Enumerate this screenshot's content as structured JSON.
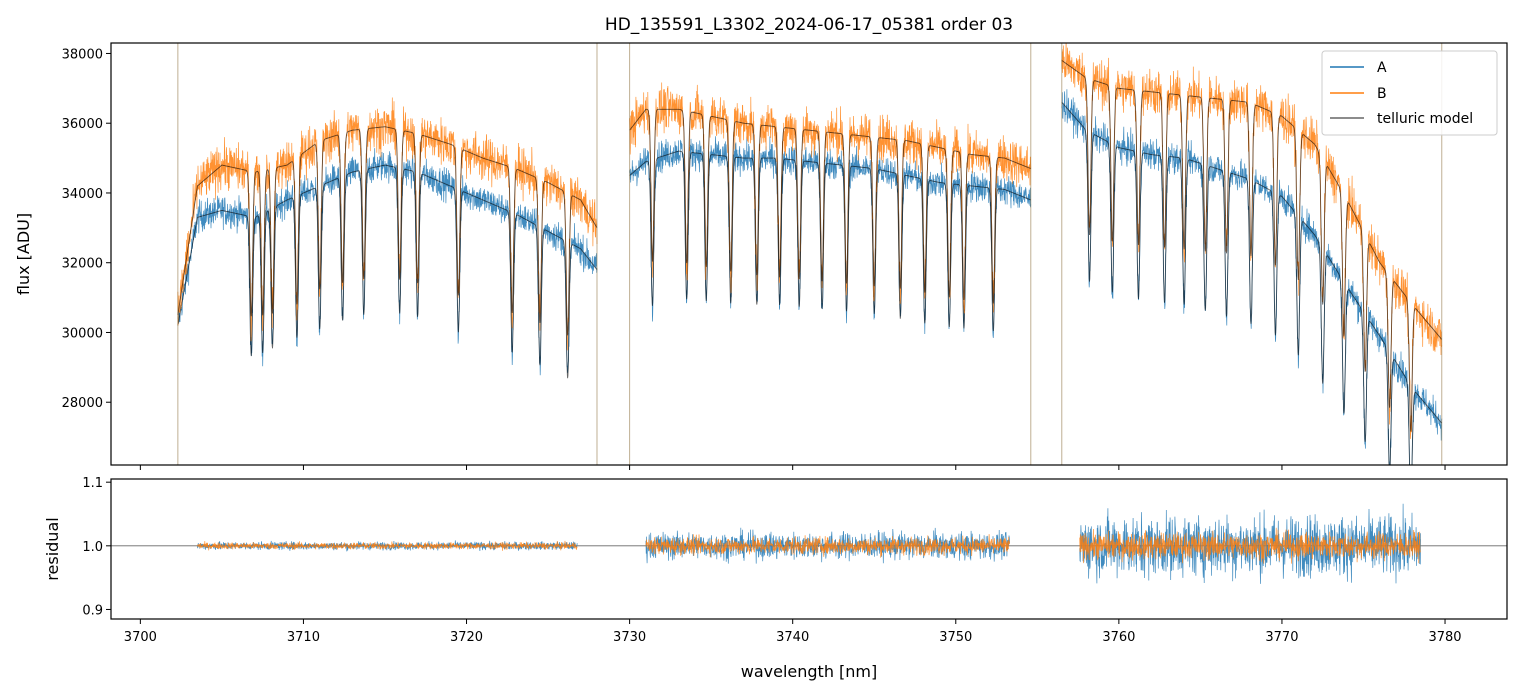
{
  "chart_data": [
    {
      "type": "line",
      "title": "HD_135591_L3302_2024-06-17_05381  order 03",
      "xlabel": "",
      "ylabel": "flux [ADU]",
      "xlim": [
        3698.2,
        3783.8
      ],
      "ylim": [
        26200,
        38300
      ],
      "xticks": [
        3700,
        3710,
        3720,
        3730,
        3740,
        3750,
        3760,
        3770,
        3780
      ],
      "yticks": [
        28000,
        30000,
        32000,
        34000,
        36000,
        38000
      ],
      "ytick_labels": [
        "28000",
        "30000",
        "32000",
        "34000",
        "36000",
        "38000"
      ],
      "legend_position": "top-right",
      "series": [
        {
          "name": "A",
          "color": "#1f77b4",
          "segments": [
            {
              "x": [
                3702.3,
                3703.5,
                3705.0,
                3707.0,
                3709.0,
                3711.0,
                3713.0,
                3715.0,
                3717.0,
                3719.0,
                3721.0,
                3723.0,
                3725.0,
                3727.0,
                3728.0
              ],
              "y": [
                30200,
                33300,
                33500,
                33300,
                33800,
                34200,
                34600,
                34800,
                34600,
                34200,
                33800,
                33400,
                32900,
                32400,
                31800
              ]
            },
            {
              "x": [
                3730.0,
                3731.0,
                3733.0,
                3735.0,
                3737.0,
                3739.0,
                3741.0,
                3743.0,
                3745.0,
                3747.0,
                3749.0,
                3751.0,
                3753.0,
                3754.6
              ],
              "y": [
                34500,
                34900,
                35200,
                35100,
                35000,
                35000,
                34900,
                34800,
                34700,
                34500,
                34300,
                34200,
                34100,
                33800
              ]
            },
            {
              "x": [
                3756.5,
                3758.0,
                3760.0,
                3762.0,
                3764.0,
                3766.0,
                3768.0,
                3770.0,
                3772.0,
                3774.0,
                3776.0,
                3778.0,
                3779.8
              ],
              "y": [
                36600,
                35800,
                35300,
                35100,
                35000,
                34700,
                34400,
                33900,
                32800,
                31300,
                29900,
                28400,
                27400
              ]
            }
          ]
        },
        {
          "name": "B",
          "color": "#ff7f0e",
          "segments": [
            {
              "x": [
                3702.3,
                3703.5,
                3705.0,
                3707.0,
                3709.0,
                3711.0,
                3713.0,
                3715.0,
                3717.0,
                3719.0,
                3721.0,
                3723.0,
                3725.0,
                3727.0,
                3728.0
              ],
              "y": [
                30500,
                34200,
                34800,
                34600,
                34800,
                35500,
                35800,
                35900,
                35700,
                35400,
                35000,
                34700,
                34300,
                33800,
                33000
              ]
            },
            {
              "x": [
                3730.0,
                3731.0,
                3733.0,
                3735.0,
                3737.0,
                3739.0,
                3741.0,
                3743.0,
                3745.0,
                3747.0,
                3749.0,
                3751.0,
                3753.0,
                3754.6
              ],
              "y": [
                35800,
                36400,
                36400,
                36200,
                36000,
                35900,
                35800,
                35700,
                35600,
                35500,
                35300,
                35100,
                35000,
                34700
              ]
            },
            {
              "x": [
                3756.5,
                3758.0,
                3760.0,
                3762.0,
                3764.0,
                3766.0,
                3768.0,
                3770.0,
                3772.0,
                3774.0,
                3776.0,
                3778.0,
                3779.8
              ],
              "y": [
                37800,
                37300,
                37000,
                36900,
                36800,
                36700,
                36600,
                36200,
                35400,
                33800,
                32000,
                30800,
                29800
              ]
            }
          ]
        },
        {
          "name": "telluric model",
          "color": "#000000"
        }
      ]
    },
    {
      "type": "line",
      "xlabel": "wavelength [nm]",
      "ylabel": "residual",
      "xlim": [
        3698.2,
        3783.8
      ],
      "ylim": [
        0.885,
        1.105
      ],
      "xticks": [
        3700,
        3710,
        3720,
        3730,
        3740,
        3750,
        3760,
        3770,
        3780
      ],
      "xtick_labels": [
        "3700",
        "3710",
        "3720",
        "3730",
        "3740",
        "3750",
        "3760",
        "3770",
        "3780"
      ],
      "yticks": [
        0.9,
        1.0,
        1.1
      ],
      "ytick_labels": [
        "0.9",
        "1.0",
        "1.1"
      ],
      "reference_line": 1.0,
      "series": [
        {
          "name": "A",
          "color": "#1f77b4",
          "segments": [
            [
              3703.5,
              3726.8,
              0.006
            ],
            [
              3731.0,
              3753.3,
              0.02
            ],
            [
              3757.6,
              3778.5,
              0.045
            ]
          ]
        },
        {
          "name": "B",
          "color": "#ff7f0e",
          "segments": [
            [
              3703.5,
              3726.8,
              0.005
            ],
            [
              3731.0,
              3753.3,
              0.013
            ],
            [
              3757.6,
              3778.5,
              0.02
            ]
          ]
        }
      ]
    }
  ]
}
